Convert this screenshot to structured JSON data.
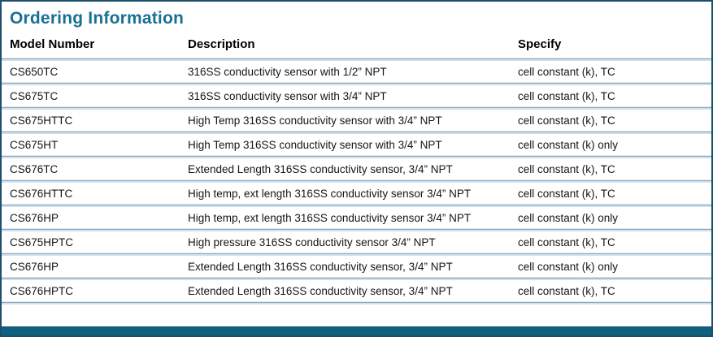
{
  "title": "Ordering Information",
  "colors": {
    "title_teal": "#1a7094",
    "frame_border": "#1d4f6c",
    "bottom_bar": "#0f607f",
    "separator_dark": "#8fa9bb",
    "separator_light": "#cfe0ee"
  },
  "table": {
    "headers": [
      "Model Number",
      "Description",
      "Specify"
    ],
    "rows": [
      {
        "model": "CS650TC",
        "description": "316SS conductivity sensor with 1/2” NPT",
        "specify": "cell constant (k), TC"
      },
      {
        "model": "CS675TC",
        "description": "316SS conductivity sensor with 3/4” NPT",
        "specify": "cell constant (k), TC"
      },
      {
        "model": "CS675HTTC",
        "description": "High Temp 316SS conductivity sensor with 3/4” NPT",
        "specify": "cell constant (k), TC"
      },
      {
        "model": "CS675HT",
        "description": "High Temp 316SS conductivity sensor with 3/4” NPT",
        "specify": "cell constant (k) only"
      },
      {
        "model": "CS676TC",
        "description": "Extended Length 316SS conductivity sensor, 3/4” NPT",
        "specify": "cell constant (k), TC"
      },
      {
        "model": "CS676HTTC",
        "description": "High temp, ext length 316SS conductivity sensor 3/4” NPT",
        "specify": "cell constant (k), TC"
      },
      {
        "model": "CS676HP",
        "description": "High temp, ext length 316SS conductivity sensor 3/4” NPT",
        "specify": "cell constant (k) only"
      },
      {
        "model": "CS675HPTC",
        "description": "High pressure 316SS conductivity sensor 3/4” NPT",
        "specify": "cell constant (k), TC"
      },
      {
        "model": "CS676HP",
        "description": "Extended Length 316SS conductivity sensor, 3/4” NPT",
        "specify": "cell constant (k) only"
      },
      {
        "model": "CS676HPTC",
        "description": "Extended Length 316SS conductivity sensor, 3/4” NPT",
        "specify": "cell constant (k), TC"
      }
    ]
  }
}
